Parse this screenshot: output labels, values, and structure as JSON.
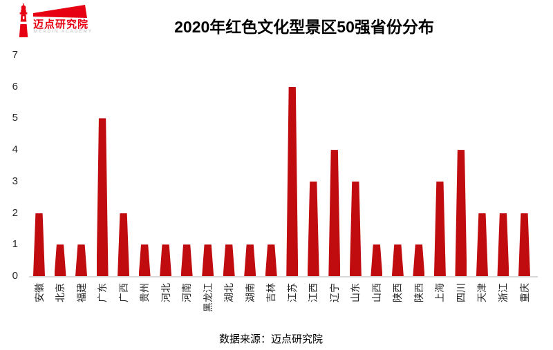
{
  "header": {
    "logo": {
      "cn": "迈点研究院",
      "en": "MEADIN ACADEMY"
    },
    "title": "2020年红色文化型景区50强省份分布"
  },
  "footer": {
    "source": "数据来源：迈点研究院"
  },
  "colors": {
    "bar": "#C00C0F",
    "logo_red": "#E60012",
    "axis_line": "#D9D9D9",
    "tick_text": "#262626"
  },
  "chart_data": {
    "type": "bar",
    "title": "2020年红色文化型景区50强省份分布",
    "categories": [
      "安徽",
      "北京",
      "福建",
      "广东",
      "广西",
      "贵州",
      "河北",
      "河南",
      "黑龙江",
      "湖北",
      "湖南",
      "吉林",
      "江苏",
      "江西",
      "辽宁",
      "山东",
      "山西",
      "陕西",
      "陕西",
      "上海",
      "四川",
      "天津",
      "浙江",
      "重庆"
    ],
    "values": [
      2,
      1,
      1,
      5,
      2,
      1,
      1,
      1,
      1,
      1,
      1,
      1,
      6,
      3,
      4,
      3,
      1,
      1,
      1,
      3,
      4,
      2,
      2,
      2
    ],
    "xlabel": "",
    "ylabel": "",
    "ylim": [
      0,
      7
    ],
    "yticks": [
      0,
      1,
      2,
      3,
      4,
      5,
      6,
      7
    ],
    "grid": false,
    "legend_position": "none",
    "bar_style": "tapered-trapezoid"
  }
}
